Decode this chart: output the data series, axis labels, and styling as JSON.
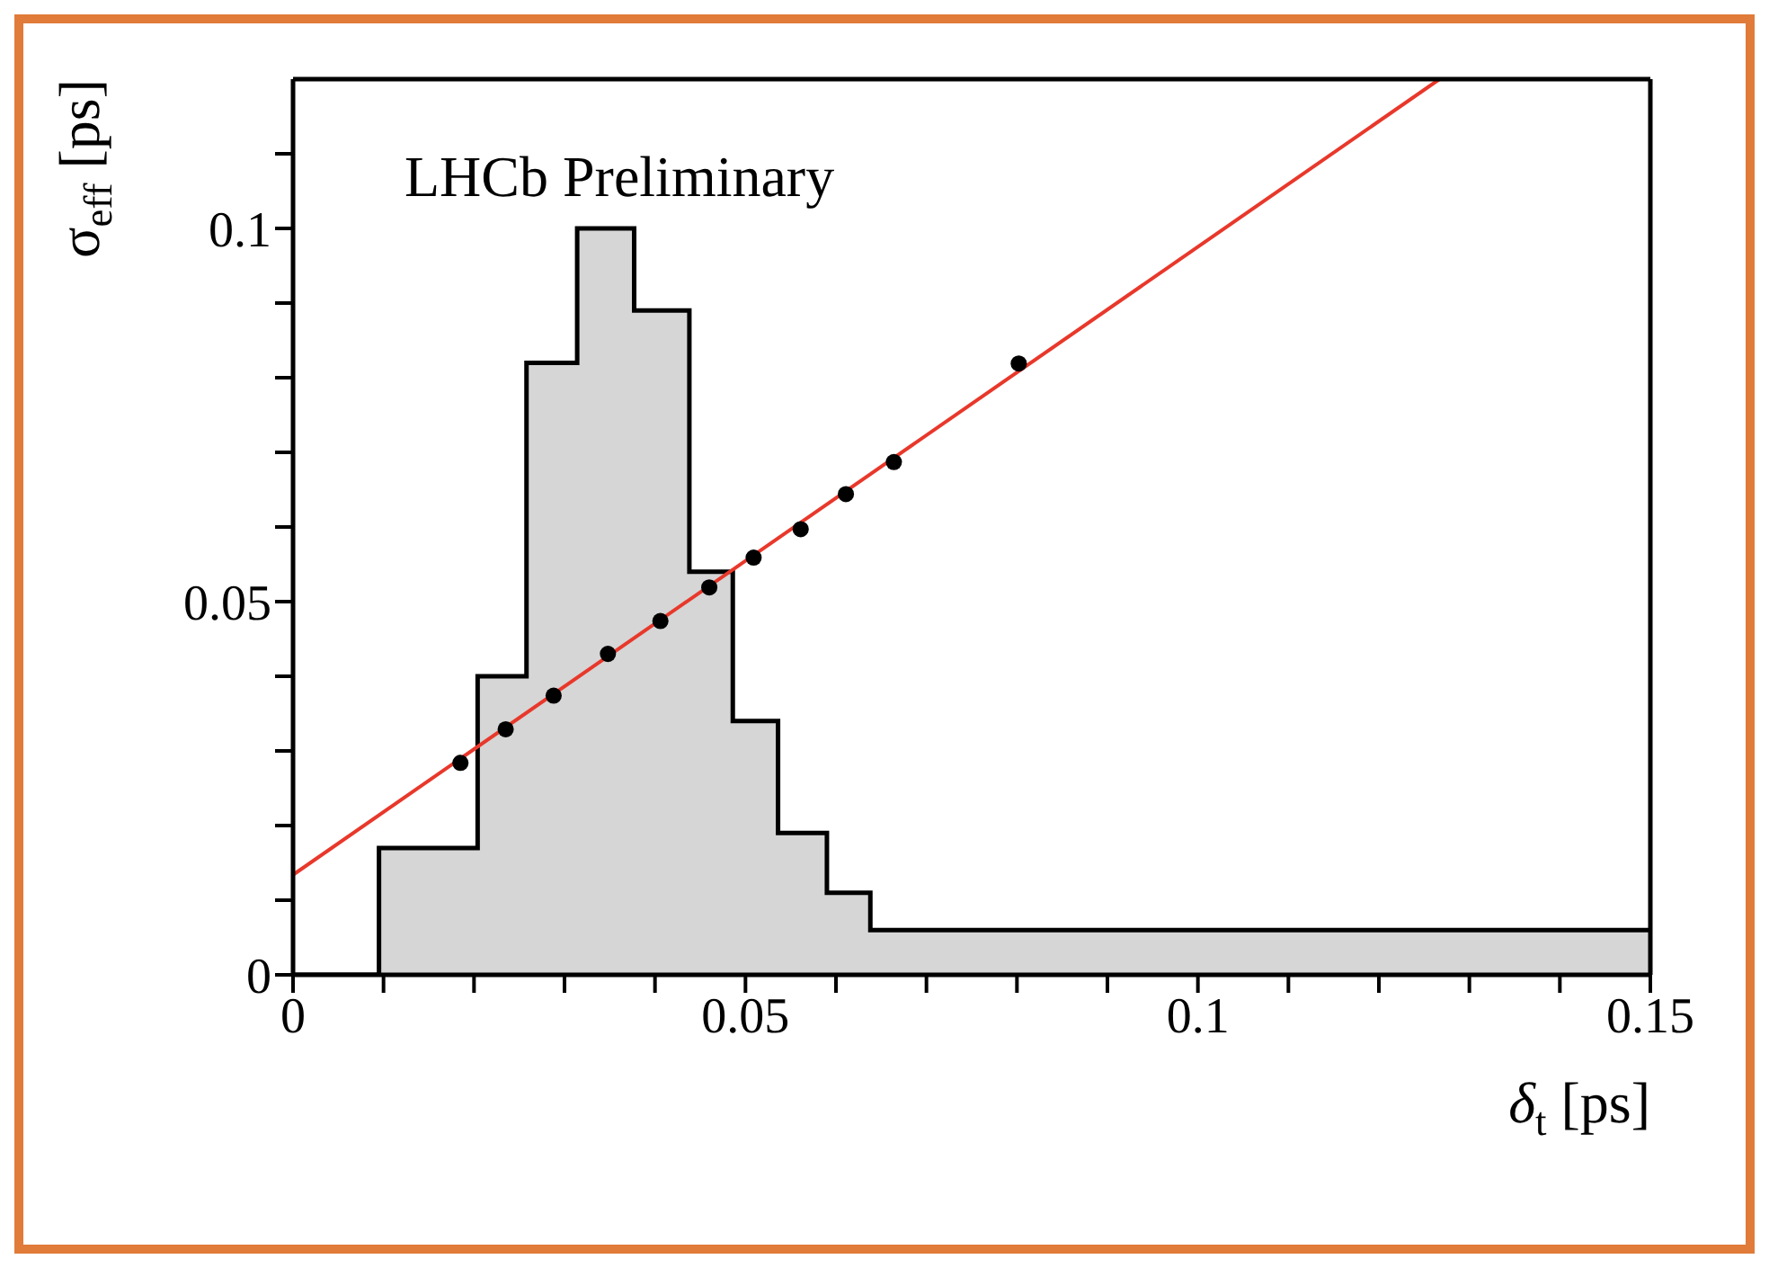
{
  "chart_data": {
    "type": "histogram",
    "xlabel": "δ$_{t}$ [ps]",
    "ylabel": "σ$_{eff}$ [ps]",
    "annotations": [
      "LHCb Preliminary"
    ],
    "xlim": [
      0,
      0.15
    ],
    "ylim": [
      0,
      0.12
    ],
    "xticks": [
      0,
      {
        "value": 0.01,
        "label": null
      },
      {
        "value": 0.02,
        "label": null
      },
      {
        "value": 0.03,
        "label": null
      },
      {
        "value": 0.04,
        "label": null
      },
      0.05,
      {
        "value": 0.06,
        "label": null
      },
      {
        "value": 0.07,
        "label": null
      },
      {
        "value": 0.08,
        "label": null
      },
      {
        "value": 0.09,
        "label": null
      },
      0.1,
      {
        "value": 0.11,
        "label": null
      },
      {
        "value": 0.12,
        "label": null
      },
      {
        "value": 0.13,
        "label": null
      },
      {
        "value": 0.14,
        "label": null
      },
      0.15
    ],
    "yticks": [
      0,
      {
        "value": 0.01,
        "label": null
      },
      {
        "value": 0.02,
        "label": null
      },
      {
        "value": 0.03,
        "label": null
      },
      {
        "value": 0.04,
        "label": null
      },
      0.05,
      {
        "value": 0.06,
        "label": null
      },
      {
        "value": 0.07,
        "label": null
      },
      {
        "value": 0.08,
        "label": null
      },
      {
        "value": 0.09,
        "label": null
      },
      0.1,
      {
        "value": 0.11,
        "label": null
      }
    ],
    "series": [
      {
        "color": "#d6d6d6",
        "bins": [
          0,
          0.0095,
          0.0204,
          0.0258,
          0.0314,
          0.0377,
          0.0438,
          0.0486,
          0.0536,
          0.059,
          0.0638,
          0.15
        ],
        "values": [
          0,
          0.017,
          0.04,
          0.082,
          0.1,
          0.089,
          0.054,
          0.034,
          0.019,
          0.011,
          0.006
        ]
      },
      {
        "type": "scatter",
        "color": "#000000",
        "x": [
          0.0185,
          0.0235,
          0.0288,
          0.0348,
          0.0406,
          0.046,
          0.0509,
          0.0561,
          0.0611,
          0.0664,
          0.0802
        ],
        "values": [
          0.0284,
          0.0329,
          0.0374,
          0.043,
          0.0474,
          0.0519,
          0.0559,
          0.0597,
          0.0644,
          0.0687,
          0.0819
        ]
      },
      {
        "type": "line",
        "color": "#e8382b",
        "x": [
          0,
          0.1267
        ],
        "values": [
          0.0134,
          0.12
        ]
      }
    ]
  }
}
